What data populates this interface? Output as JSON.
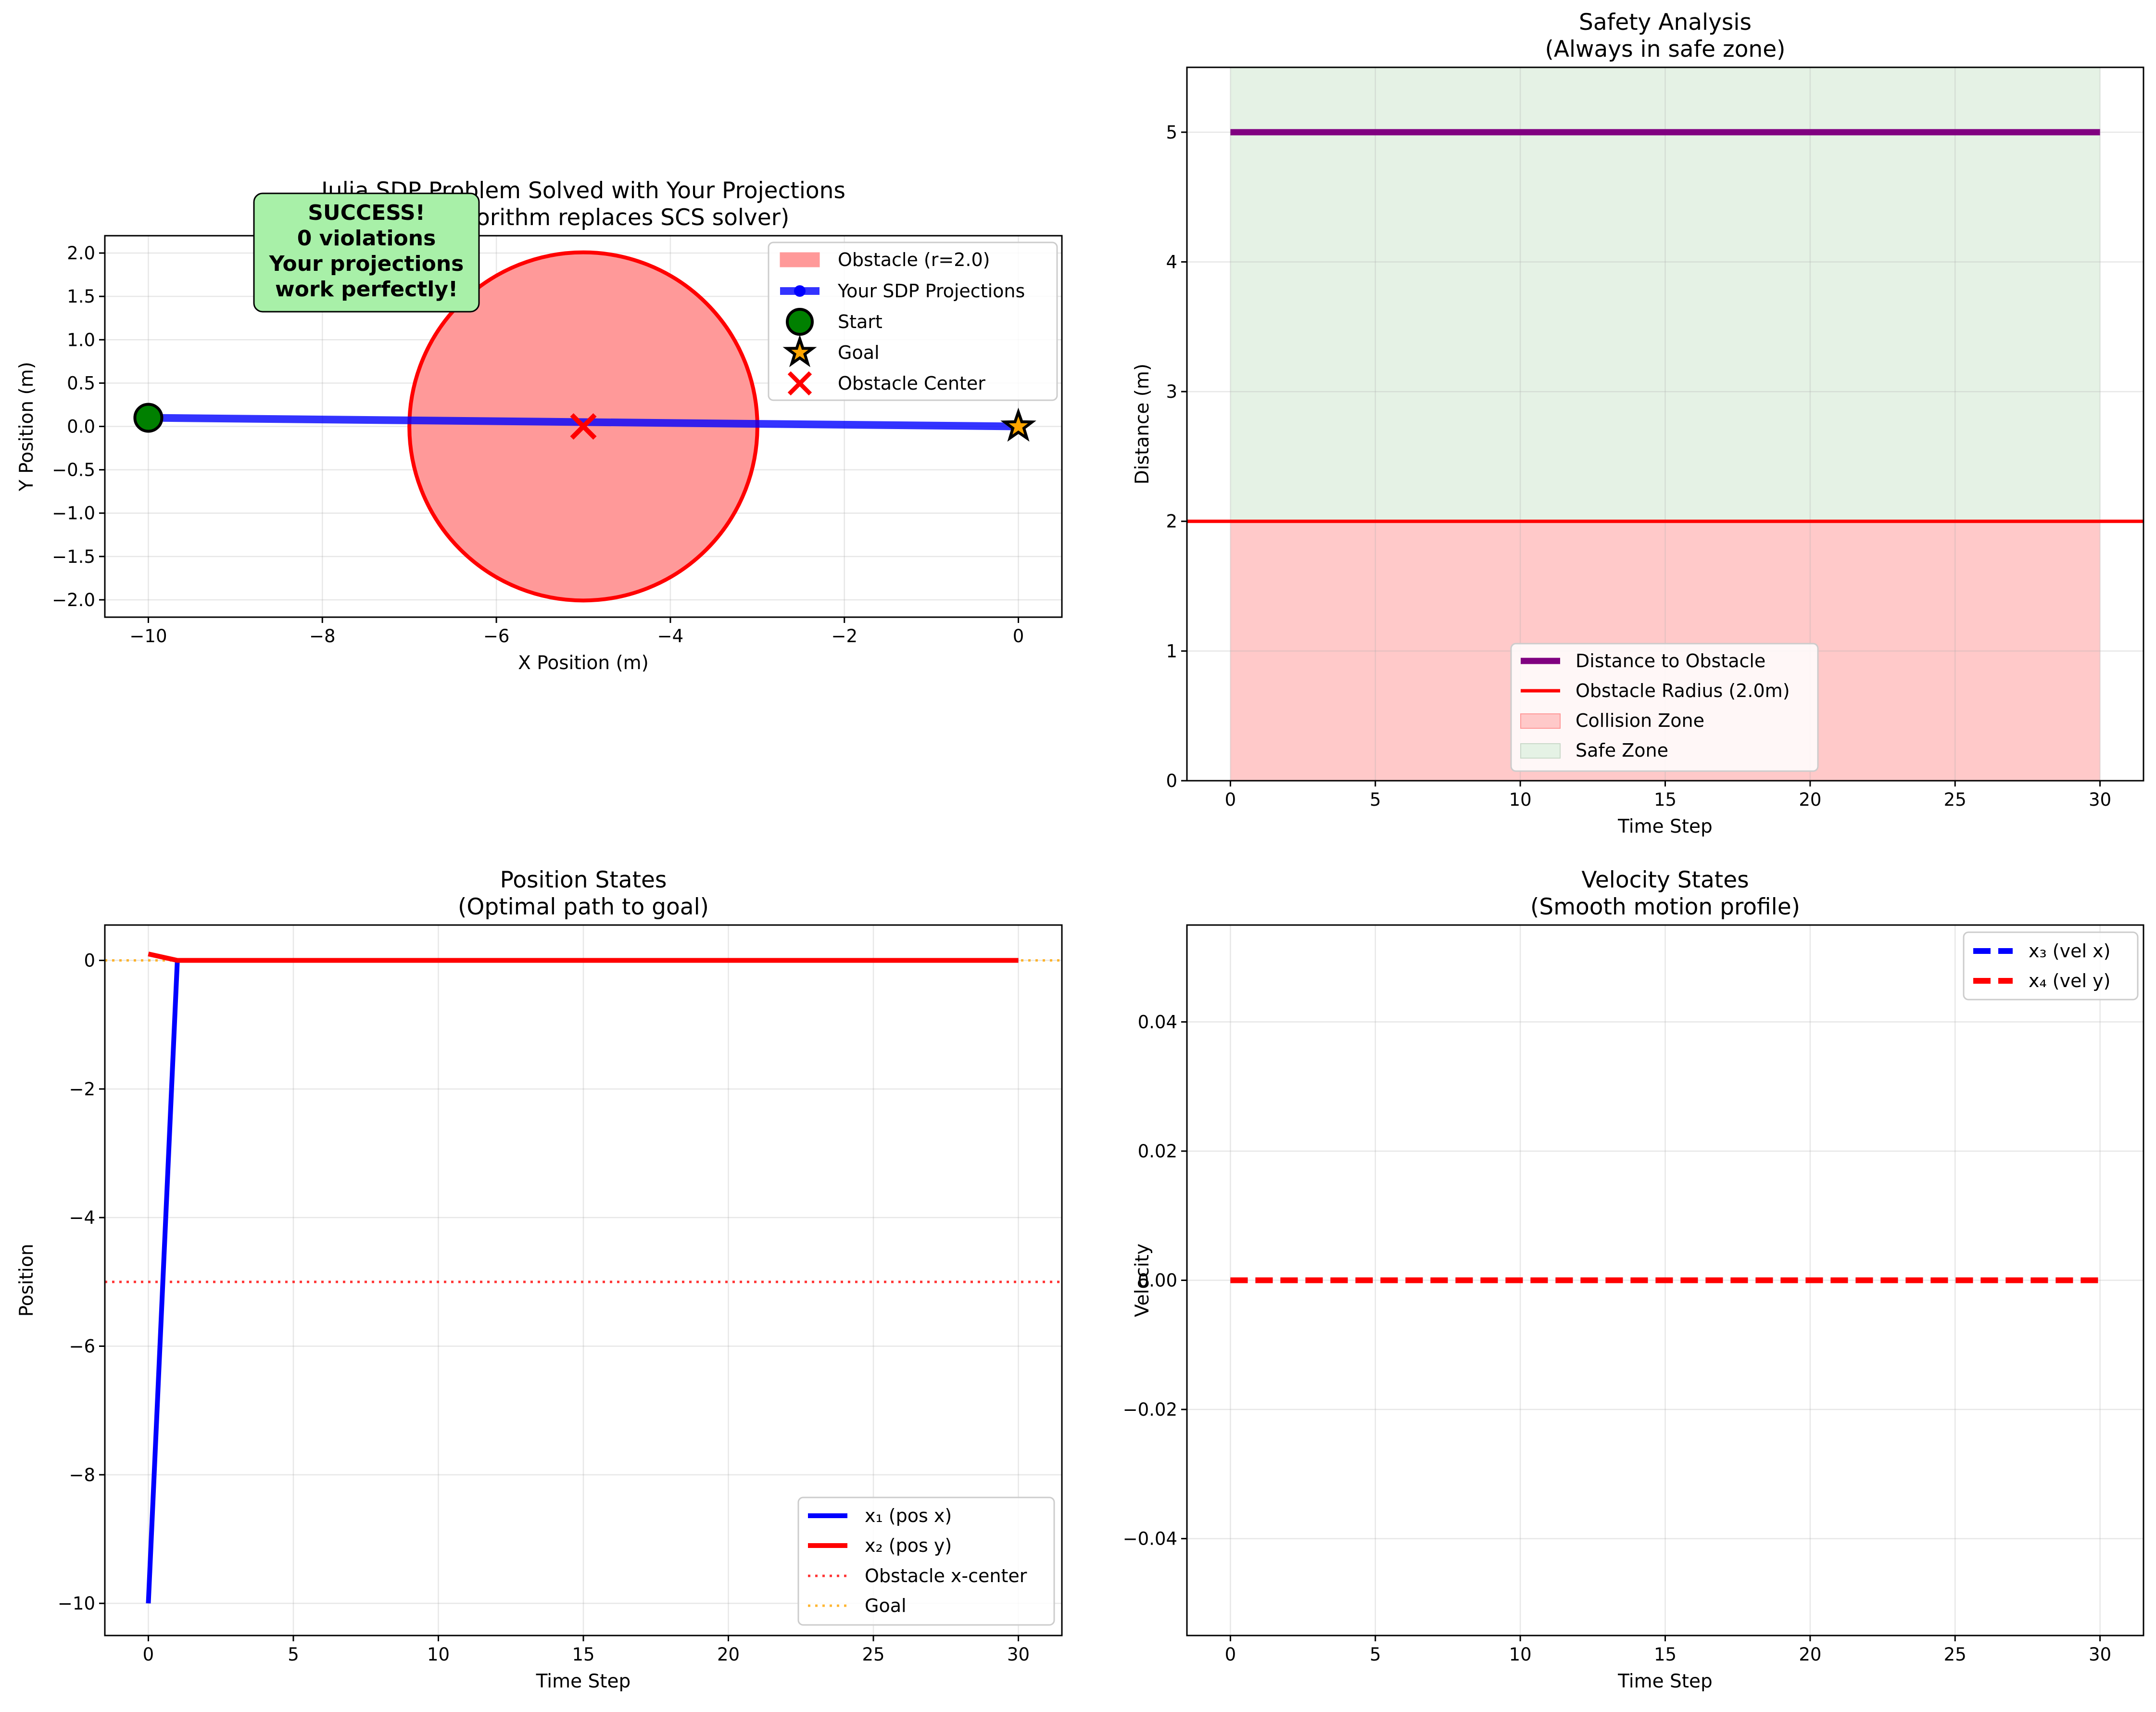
{
  "chart_data": [
    {
      "type": "line",
      "id": "trajectory",
      "title": "Julia SDP Problem Solved with Your Projections",
      "subtitle": "(Your algorithm replaces SCS solver)",
      "xlabel": "X Position (m)",
      "ylabel": "Y Position (m)",
      "xlim": [
        -10.5,
        0.5
      ],
      "ylim": [
        -2.2,
        2.2
      ],
      "xticks": [
        -10,
        -8,
        -6,
        -4,
        -2,
        0
      ],
      "xtick_labels": [
        "−10",
        "−8",
        "−6",
        "−4",
        "−2",
        "0"
      ],
      "yticks": [
        -2.0,
        -1.5,
        -1.0,
        -0.5,
        0.0,
        0.5,
        1.0,
        1.5,
        2.0
      ],
      "ytick_labels": [
        "−2.0",
        "−1.5",
        "−1.0",
        "−0.5",
        "0.0",
        "0.5",
        "1.0",
        "1.5",
        "2.0"
      ],
      "grid": true,
      "legend_position": "top-right",
      "obstacle": {
        "center": [
          -5,
          0
        ],
        "radius": 2.0,
        "fill": "#ff9999",
        "edge": "#ff0000"
      },
      "series": [
        {
          "name": "Your SDP Projections",
          "color": "#0000ff",
          "x": [
            -10,
            0
          ],
          "y": [
            0.1,
            0.0
          ]
        }
      ],
      "start": {
        "x": -10,
        "y": 0.1,
        "color": "#008000"
      },
      "goal": {
        "x": 0,
        "y": 0,
        "color": "#ffa500"
      },
      "obstacle_center": {
        "x": -5,
        "y": 0,
        "color": "#ff0000"
      },
      "legend": [
        "Obstacle (r=2.0)",
        "Your SDP Projections",
        "Start",
        "Goal",
        "Obstacle Center"
      ],
      "annotation": {
        "lines": [
          "SUCCESS!",
          "0 violations",
          "Your projections",
          "work perfectly!"
        ],
        "background": "#a8f0a8"
      }
    },
    {
      "type": "line",
      "id": "safety",
      "title": "Safety Analysis",
      "subtitle": "(Always in safe zone)",
      "xlabel": "Time Step",
      "ylabel": "Distance (m)",
      "xlim": [
        -1.5,
        31.5
      ],
      "ylim": [
        0,
        5.5
      ],
      "xticks": [
        0,
        5,
        10,
        15,
        20,
        25,
        30
      ],
      "xtick_labels": [
        "0",
        "5",
        "10",
        "15",
        "20",
        "25",
        "30"
      ],
      "yticks": [
        0,
        1,
        2,
        3,
        4,
        5
      ],
      "ytick_labels": [
        "0",
        "1",
        "2",
        "3",
        "4",
        "5"
      ],
      "grid": true,
      "legend_position": "lower-center",
      "series": [
        {
          "name": "Distance to Obstacle",
          "color": "#800080",
          "x": [
            0,
            30
          ],
          "y": [
            5.0,
            5.0
          ]
        }
      ],
      "hline": {
        "name": "Obstacle Radius (2.0m)",
        "y": 2.0,
        "color": "#ff0000"
      },
      "zones": [
        {
          "name": "Collision Zone",
          "from": 0,
          "to": 2.0,
          "x": [
            0,
            30
          ],
          "color": "#ffc9c9"
        },
        {
          "name": "Safe Zone",
          "from": 2.0,
          "to": 5.5,
          "x": [
            0,
            30
          ],
          "color": "#e5f2e5"
        }
      ],
      "legend": [
        "Distance to Obstacle",
        "Obstacle Radius (2.0m)",
        "Collision Zone",
        "Safe Zone"
      ]
    },
    {
      "type": "line",
      "id": "position",
      "title": "Position States",
      "subtitle": "(Optimal path to goal)",
      "xlabel": "Time Step",
      "ylabel": "Position",
      "xlim": [
        -1.5,
        31.5
      ],
      "ylim": [
        -10.5,
        0.55
      ],
      "xticks": [
        0,
        5,
        10,
        15,
        20,
        25,
        30
      ],
      "xtick_labels": [
        "0",
        "5",
        "10",
        "15",
        "20",
        "25",
        "30"
      ],
      "yticks": [
        -10,
        -8,
        -6,
        -4,
        -2,
        0
      ],
      "ytick_labels": [
        "−10",
        "−8",
        "−6",
        "−4",
        "−2",
        "0"
      ],
      "grid": true,
      "legend_position": "lower-right",
      "series": [
        {
          "name": "x₁ (pos x)",
          "color": "#0000ff",
          "x": [
            0,
            1,
            30
          ],
          "y": [
            -10,
            0,
            0
          ]
        },
        {
          "name": "x₂ (pos y)",
          "color": "#ff0000",
          "x": [
            0,
            1,
            30
          ],
          "y": [
            0.1,
            0,
            0
          ]
        }
      ],
      "hlines": [
        {
          "name": "Obstacle x-center",
          "y": -5,
          "color": "#ff0000"
        },
        {
          "name": "Goal",
          "y": 0,
          "color": "#ffa500"
        }
      ],
      "legend": [
        "x₁ (pos x)",
        "x₂ (pos y)",
        "Obstacle x-center",
        "Goal"
      ]
    },
    {
      "type": "line",
      "id": "velocity",
      "title": "Velocity States",
      "subtitle": "(Smooth motion profile)",
      "xlabel": "Time Step",
      "ylabel": "Velocity",
      "xlim": [
        -1.5,
        31.5
      ],
      "ylim": [
        -0.055,
        0.055
      ],
      "xticks": [
        0,
        5,
        10,
        15,
        20,
        25,
        30
      ],
      "xtick_labels": [
        "0",
        "5",
        "10",
        "15",
        "20",
        "25",
        "30"
      ],
      "yticks": [
        -0.04,
        -0.02,
        0.0,
        0.02,
        0.04
      ],
      "ytick_labels": [
        "−0.04",
        "−0.02",
        "0.00",
        "0.02",
        "0.04"
      ],
      "grid": true,
      "legend_position": "top-right",
      "series": [
        {
          "name": "x₃ (vel x)",
          "color": "#0000ff",
          "x": [
            0,
            30
          ],
          "y": [
            0,
            0
          ]
        },
        {
          "name": "x₄ (vel y)",
          "color": "#ff0000",
          "x": [
            0,
            30
          ],
          "y": [
            0,
            0
          ]
        }
      ],
      "legend": [
        "x₃ (vel x)",
        "x₄ (vel y)"
      ]
    }
  ]
}
